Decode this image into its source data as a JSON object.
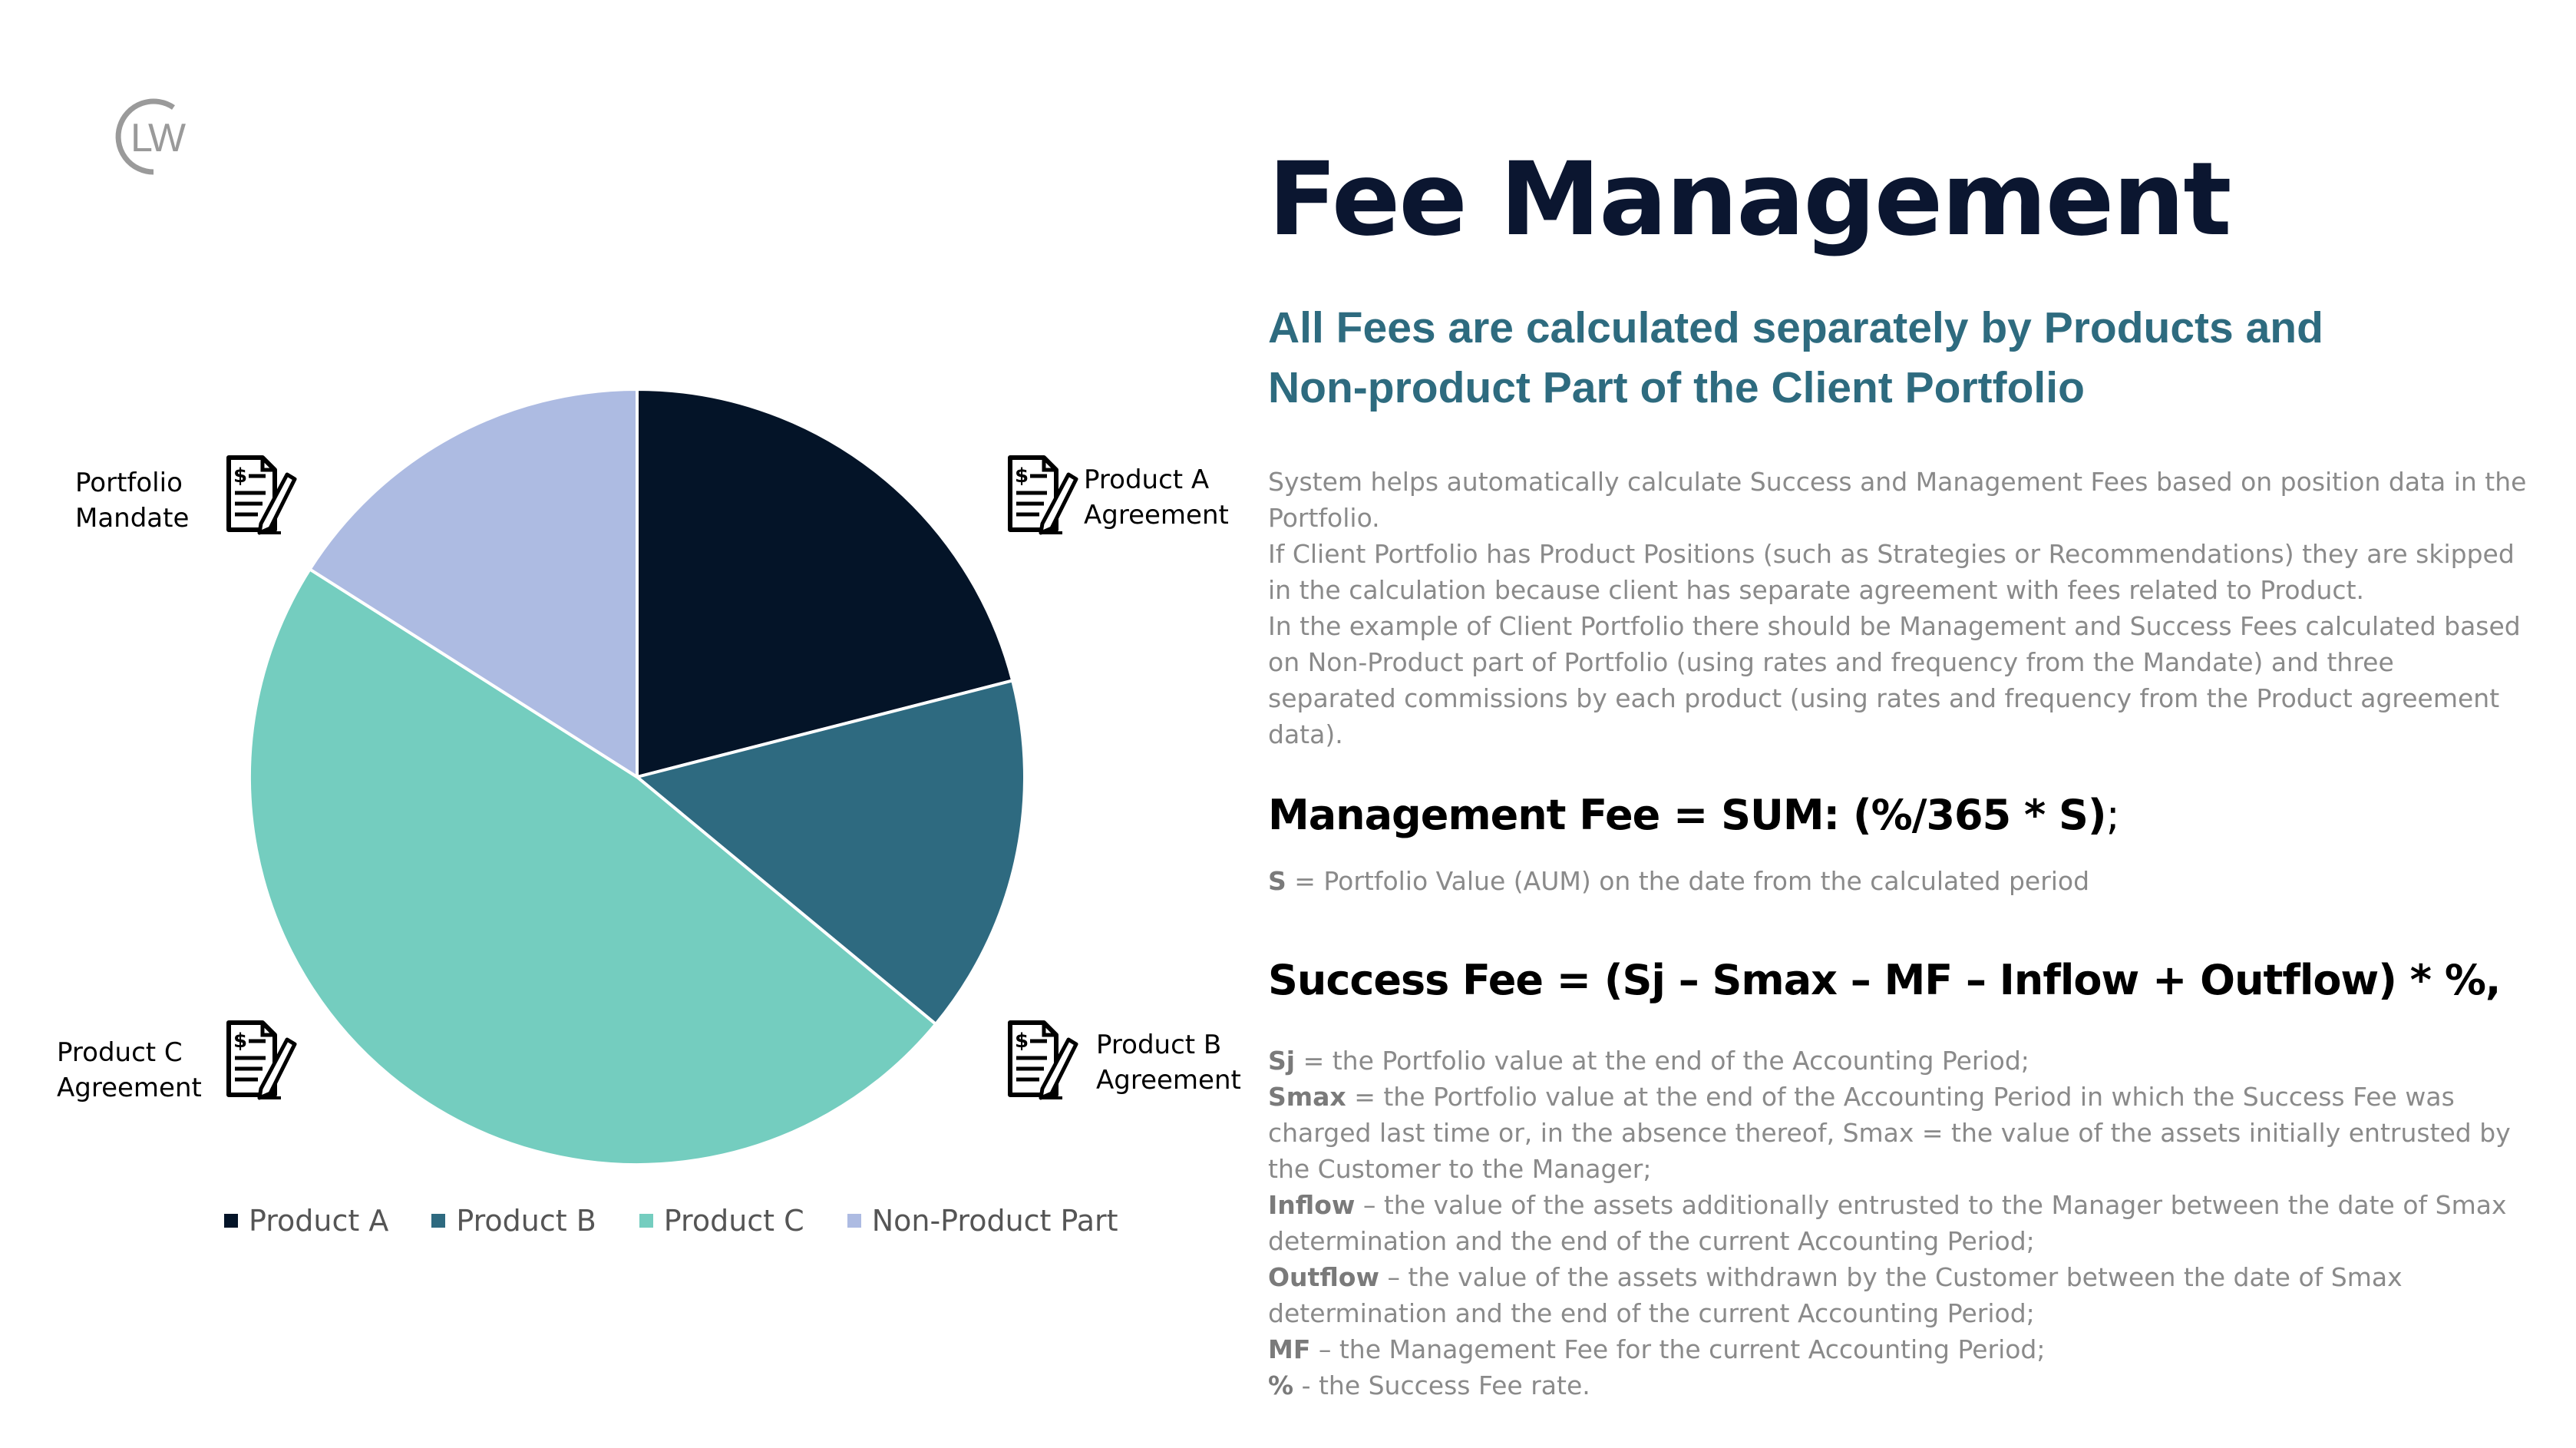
{
  "logo": {
    "text": "LW"
  },
  "header": {
    "title": "Fee Management",
    "subtitle_line1": "All Fees are calculated separately by Products and",
    "subtitle_line2": "Non-product Part of the Client Portfolio"
  },
  "description": [
    "System helps automatically calculate Success and Management Fees based on position data in the Portfolio.",
    "If Client Portfolio has Product Positions (such as Strategies or Recommendations) they are skipped in the calculation because client has separate agreement with fees related to Product.",
    "In the example of Client Portfolio there should be Management and Success Fees calculated based on Non-Product part of Portfolio (using rates and frequency from the Mandate) and three separated commissions by each product (using rates and frequency from the Product agreement data)."
  ],
  "management_fee": {
    "formula": "Management Fee = SUM: (%/365 * S)",
    "formula_end": ";",
    "note_term": "S",
    "note_text": " = Portfolio Value (AUM) on the date from the calculated period"
  },
  "success_fee": {
    "formula": "Success Fee = (Sj – Smax – MF – Inflow + Outflow) * %,",
    "definitions": [
      {
        "term": "Sj",
        "text": " = the Portfolio value at the end of the Accounting Period;"
      },
      {
        "term": "Smax",
        "text": " = the Portfolio value at the end of the Accounting Period in which the Success Fee was charged last time or, in the absence thereof, Smax = the value of the assets initially entrusted by the Customer to the Manager;"
      },
      {
        "term": "Inflow",
        "text": " – the value of the assets additionally entrusted to the Manager between the date of Smax determination and the end of the current Accounting Period;"
      },
      {
        "term": "Outflow",
        "text": " – the value of the assets withdrawn by the Customer between the date of Smax determination and the end of the current Accounting Period;"
      },
      {
        "term": "MF",
        "text": " – the Management Fee for the current Accounting Period;"
      },
      {
        "term": "%",
        "text": " - the Success Fee rate."
      }
    ]
  },
  "callouts": {
    "portfolio_mandate": [
      "Portfolio",
      "Mandate"
    ],
    "product_a": [
      "Product A",
      "Agreement"
    ],
    "product_b": [
      "Product B",
      "Agreement"
    ],
    "product_c": [
      "Product C",
      "Agreement"
    ]
  },
  "chart_data": {
    "type": "pie",
    "categories": [
      "Product A",
      "Product B",
      "Product C",
      "Non-Product Part"
    ],
    "values": [
      21,
      15,
      48,
      16
    ],
    "colors": [
      "#041428",
      "#2e6a80",
      "#74cdbf",
      "#adbbe2"
    ],
    "start_angle_deg": 0,
    "direction": "clockwise",
    "legend_position": "bottom"
  }
}
